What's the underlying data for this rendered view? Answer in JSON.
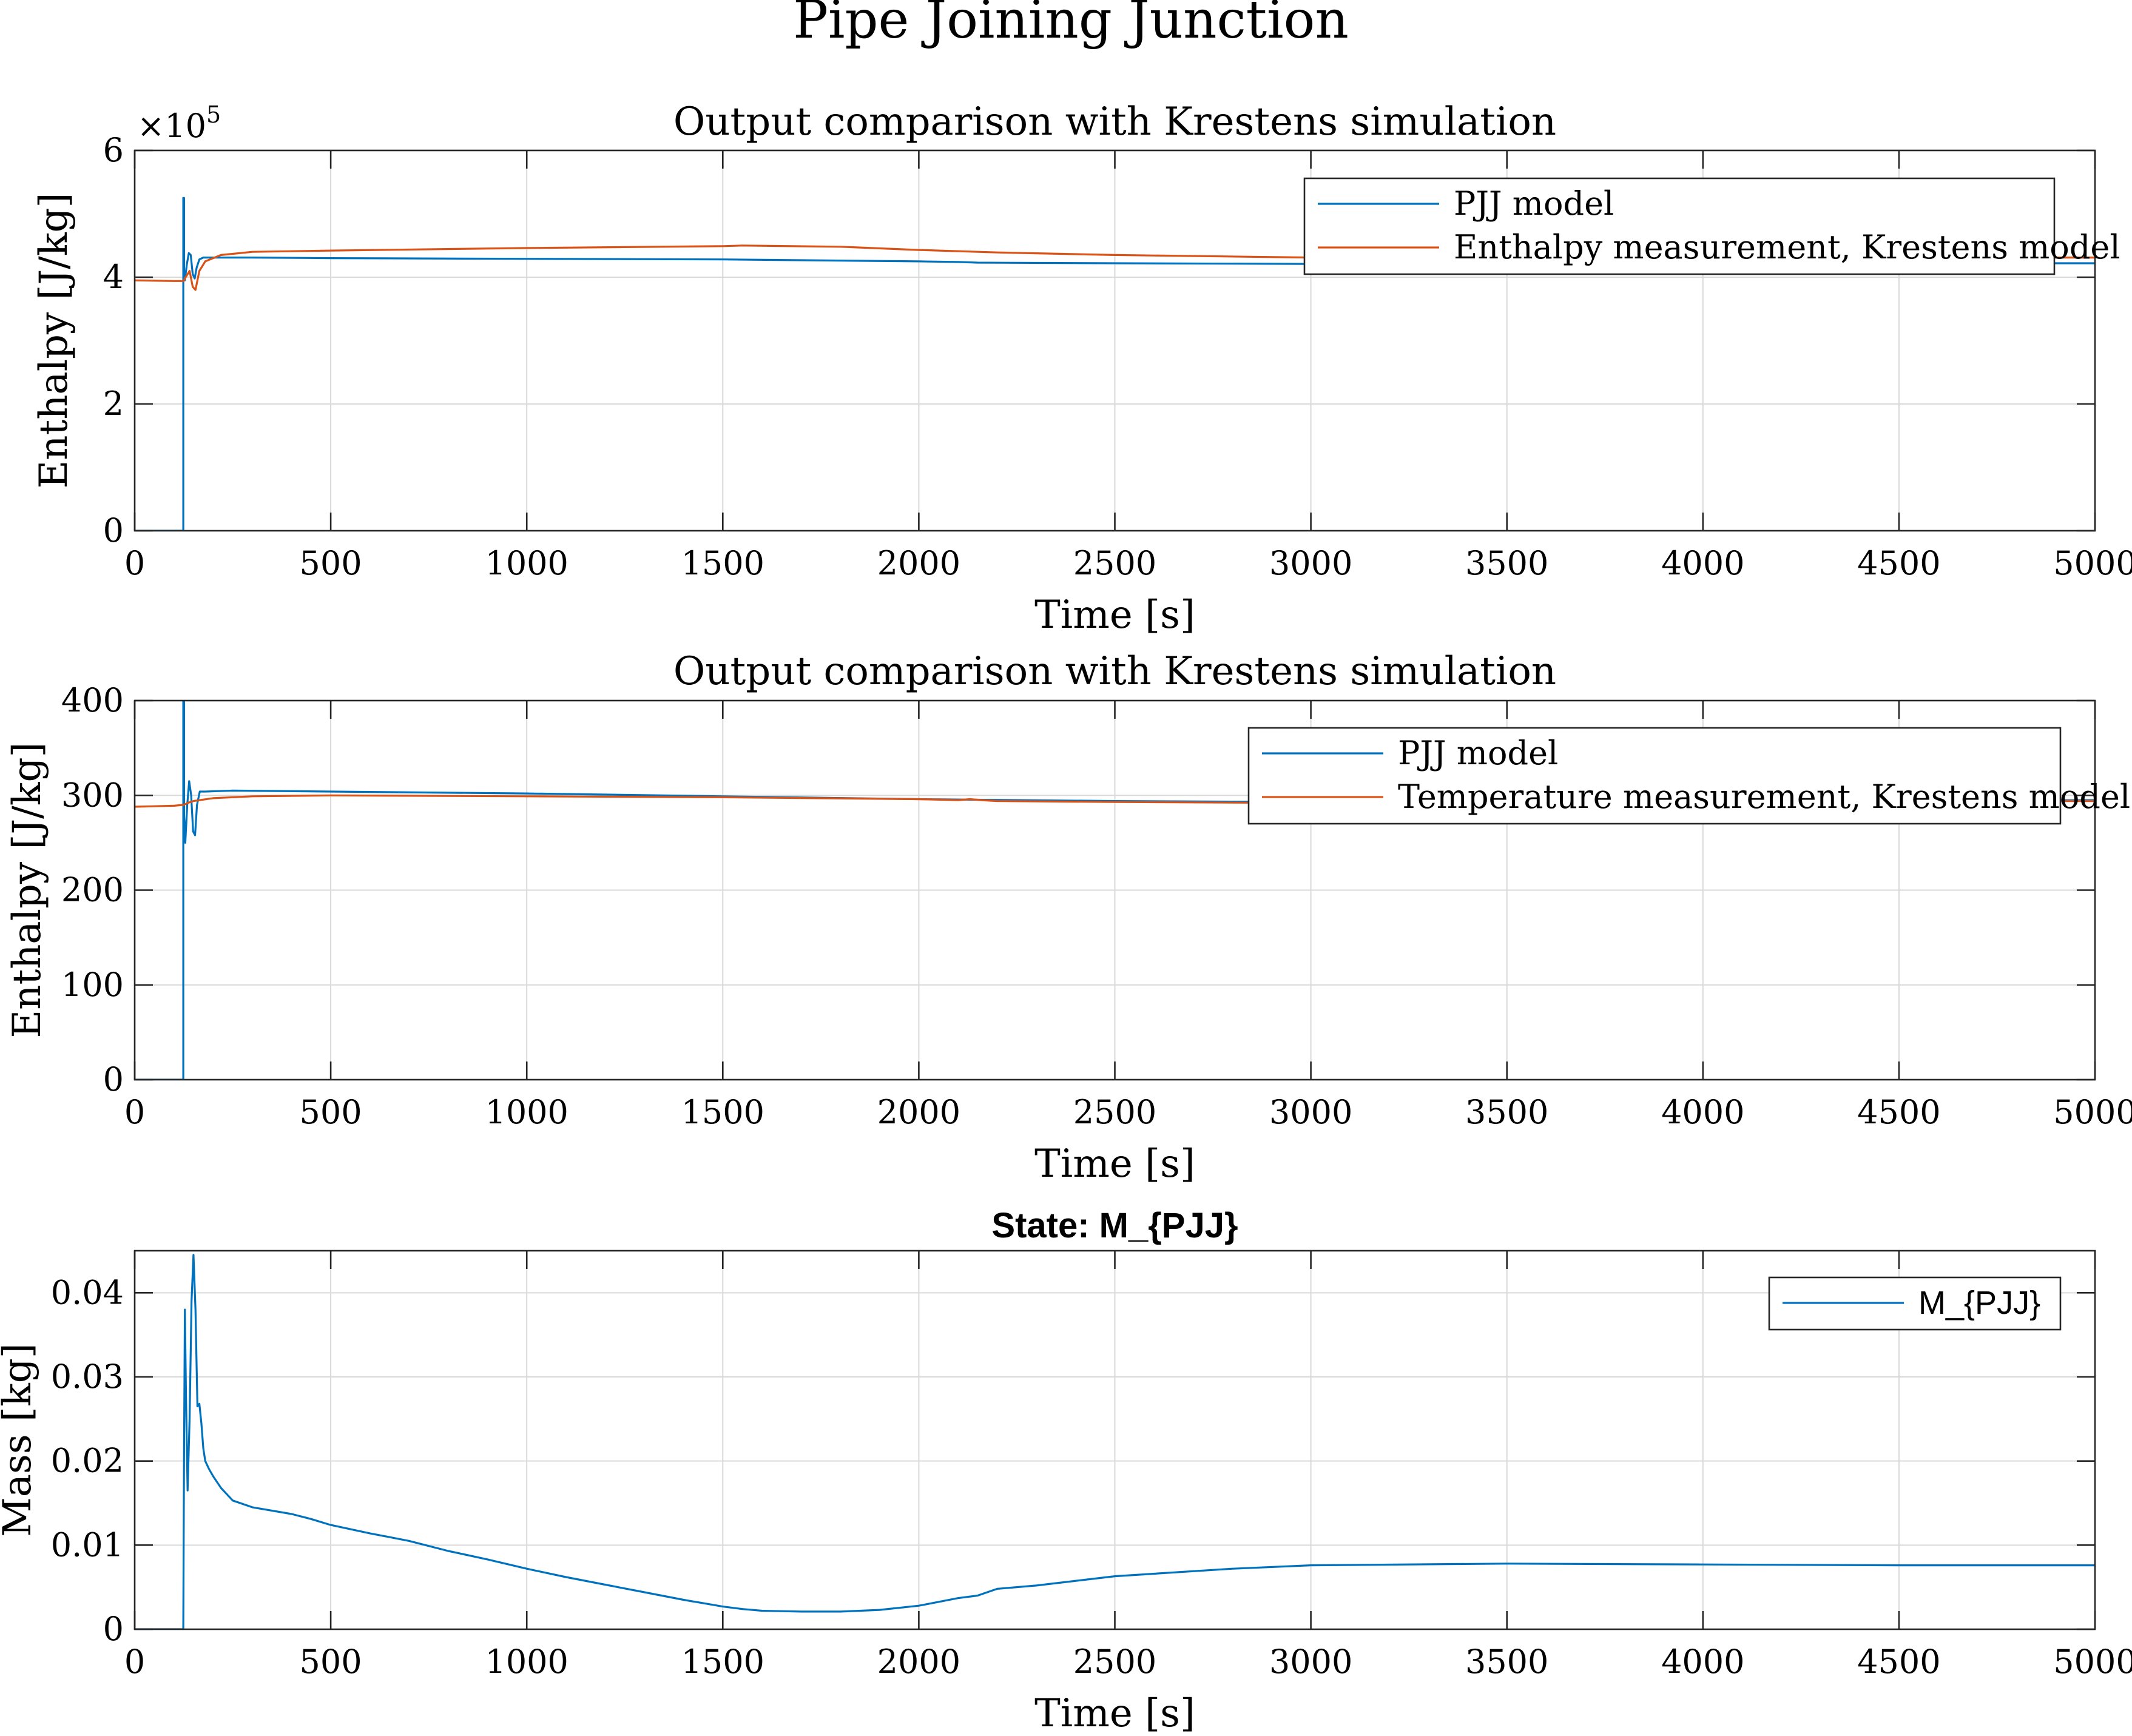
{
  "figure_title": "Pipe Joining Junction",
  "colors": {
    "blue": "#0072BD",
    "orange": "#D95319",
    "grid": "#d9d9d9",
    "axis": "#262626"
  },
  "chart_data": [
    {
      "type": "line",
      "title": "Output comparison with Krestens simulation",
      "xlabel": "Time [s]",
      "ylabel": "Enthalpy [J/kg]",
      "exponent_label": "×10",
      "exponent_power": "5",
      "xlim": [
        0,
        5000
      ],
      "ylim": [
        0,
        6
      ],
      "xticks": [
        0,
        500,
        1000,
        1500,
        2000,
        2500,
        3000,
        3500,
        4000,
        4500,
        5000
      ],
      "yticks": [
        0,
        2,
        4,
        6
      ],
      "xtick_labels": [
        "0",
        "500",
        "1000",
        "1500",
        "2000",
        "2500",
        "3000",
        "3500",
        "4000",
        "4500",
        "5000"
      ],
      "ytick_labels": [
        "0",
        "2",
        "4",
        "6"
      ],
      "grid": true,
      "legend_position": "top-right",
      "series": [
        {
          "name": "PJJ model",
          "color": "#0072BD",
          "x": [
            0,
            124,
            124,
            126,
            126,
            128,
            133,
            138,
            143,
            148,
            153,
            158,
            165,
            175,
            200,
            300,
            500,
            1000,
            1500,
            2000,
            2100,
            2150,
            2500,
            3000,
            3500,
            4000,
            4500,
            5000
          ],
          "y": [
            0,
            0,
            5.25,
            5.25,
            4.0,
            3.95,
            4.2,
            4.38,
            4.35,
            4.05,
            3.98,
            4.15,
            4.28,
            4.31,
            4.31,
            4.31,
            4.3,
            4.29,
            4.28,
            4.25,
            4.24,
            4.23,
            4.22,
            4.21,
            4.21,
            4.21,
            4.22,
            4.22
          ]
        },
        {
          "name": "Enthalpy measurement, Krestens model",
          "color": "#D95319",
          "x": [
            0,
            100,
            125,
            130,
            140,
            148,
            155,
            165,
            180,
            220,
            300,
            500,
            1000,
            1500,
            1550,
            1800,
            2000,
            2200,
            2500,
            3000,
            3500,
            4000,
            4500,
            5000
          ],
          "y": [
            3.95,
            3.94,
            3.94,
            4.0,
            4.1,
            3.85,
            3.8,
            4.1,
            4.25,
            4.35,
            4.4,
            4.42,
            4.46,
            4.49,
            4.5,
            4.48,
            4.43,
            4.39,
            4.35,
            4.31,
            4.3,
            4.3,
            4.31,
            4.31
          ]
        }
      ]
    },
    {
      "type": "line",
      "title": "Output comparison with Krestens simulation",
      "xlabel": "Time [s]",
      "ylabel": "Enthalpy [J/kg]",
      "xlim": [
        0,
        5000
      ],
      "ylim": [
        0,
        400
      ],
      "xticks": [
        0,
        500,
        1000,
        1500,
        2000,
        2500,
        3000,
        3500,
        4000,
        4500,
        5000
      ],
      "yticks": [
        0,
        100,
        200,
        300,
        400
      ],
      "xtick_labels": [
        "0",
        "500",
        "1000",
        "1500",
        "2000",
        "2500",
        "3000",
        "3500",
        "4000",
        "4500",
        "5000"
      ],
      "ytick_labels": [
        "0",
        "100",
        "200",
        "300",
        "400"
      ],
      "grid": true,
      "legend_position": "top-right",
      "series": [
        {
          "name": "PJJ model",
          "color": "#0072BD",
          "x": [
            0,
            124,
            124,
            126,
            126,
            129,
            134,
            139,
            144,
            149,
            154,
            159,
            166,
            180,
            250,
            500,
            1000,
            1500,
            2000,
            2500,
            3000,
            3500,
            4000,
            4500,
            5000
          ],
          "y": [
            0,
            0,
            400,
            400,
            280,
            250,
            290,
            315,
            300,
            262,
            258,
            290,
            304,
            304,
            305,
            304,
            302,
            299,
            296,
            294,
            293,
            293,
            294,
            294,
            295
          ]
        },
        {
          "name": "Temperature measurement, Krestens model",
          "color": "#D95319",
          "x": [
            0,
            100,
            125,
            135,
            150,
            200,
            300,
            500,
            1000,
            1500,
            2000,
            2100,
            2130,
            2160,
            2200,
            2500,
            3000,
            3500,
            4000,
            4500,
            5000
          ],
          "y": [
            288,
            289,
            290,
            292,
            294,
            297,
            299,
            300,
            299,
            298,
            296,
            295,
            296,
            295,
            294,
            293,
            292,
            293,
            294,
            294,
            294
          ]
        }
      ]
    },
    {
      "type": "line",
      "title": "State: M_{PJJ}",
      "xlabel": "Time [s]",
      "ylabel": "Mass [kg]",
      "xlim": [
        0,
        5000
      ],
      "ylim": [
        0,
        0.045
      ],
      "xticks": [
        0,
        500,
        1000,
        1500,
        2000,
        2500,
        3000,
        3500,
        4000,
        4500,
        5000
      ],
      "yticks": [
        0,
        0.01,
        0.02,
        0.03,
        0.04
      ],
      "xtick_labels": [
        "0",
        "500",
        "1000",
        "1500",
        "2000",
        "2500",
        "3000",
        "3500",
        "4000",
        "4500",
        "5000"
      ],
      "ytick_labels": [
        "0",
        "0.01",
        "0.02",
        "0.03",
        "0.04"
      ],
      "grid": true,
      "legend_position": "top-right",
      "series": [
        {
          "name": "M_{PJJ}",
          "color": "#0072BD",
          "x": [
            0,
            124,
            124,
            126,
            128,
            131,
            135,
            140,
            145,
            150,
            155,
            160,
            165,
            170,
            175,
            180,
            190,
            200,
            220,
            250,
            300,
            400,
            450,
            500,
            600,
            700,
            800,
            900,
            1000,
            1100,
            1200,
            1300,
            1400,
            1500,
            1550,
            1600,
            1700,
            1800,
            1900,
            2000,
            2100,
            2150,
            2200,
            2300,
            2500,
            2800,
            3000,
            3500,
            4000,
            4500,
            5000
          ],
          "y": [
            0,
            0,
            0.0,
            0.022,
            0.038,
            0.027,
            0.0165,
            0.025,
            0.039,
            0.0445,
            0.038,
            0.0265,
            0.0268,
            0.0245,
            0.0215,
            0.02,
            0.019,
            0.0182,
            0.0168,
            0.0153,
            0.0145,
            0.0137,
            0.0131,
            0.0124,
            0.0114,
            0.0105,
            0.0093,
            0.0083,
            0.0072,
            0.0062,
            0.0053,
            0.0044,
            0.0035,
            0.0027,
            0.0024,
            0.0022,
            0.0021,
            0.0021,
            0.0023,
            0.0028,
            0.0037,
            0.004,
            0.0048,
            0.0052,
            0.0063,
            0.0072,
            0.0076,
            0.0078,
            0.0077,
            0.0076,
            0.0076
          ]
        }
      ]
    }
  ]
}
